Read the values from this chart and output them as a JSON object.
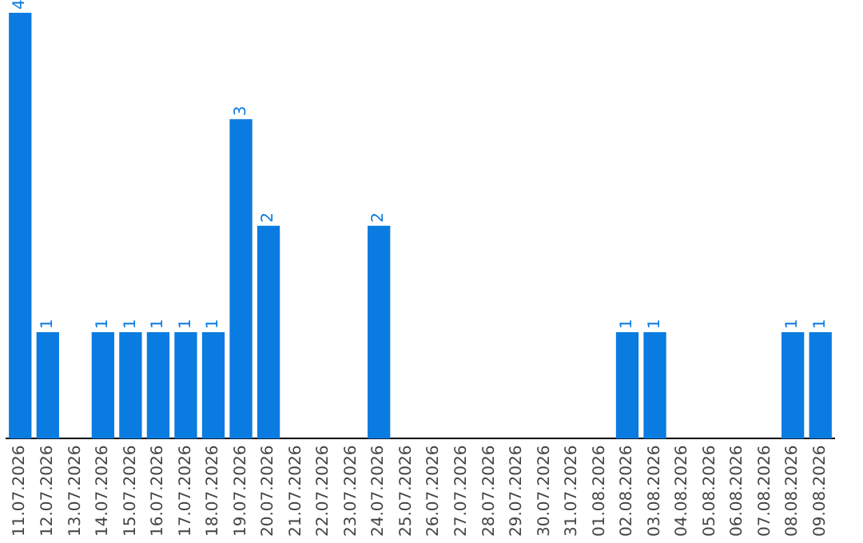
{
  "chart_data": {
    "type": "bar",
    "categories": [
      "11.07.2026",
      "12.07.2026",
      "13.07.2026",
      "14.07.2026",
      "15.07.2026",
      "16.07.2026",
      "17.07.2026",
      "18.07.2026",
      "19.07.2026",
      "20.07.2026",
      "21.07.2026",
      "22.07.2026",
      "23.07.2026",
      "24.07.2026",
      "25.07.2026",
      "26.07.2026",
      "27.07.2026",
      "28.07.2026",
      "29.07.2026",
      "30.07.2026",
      "31.07.2026",
      "01.08.2026",
      "02.08.2026",
      "03.08.2026",
      "04.08.2026",
      "05.08.2026",
      "06.08.2026",
      "07.08.2026",
      "08.08.2026",
      "09.08.2026"
    ],
    "values": [
      4,
      1,
      0,
      1,
      1,
      1,
      1,
      1,
      3,
      2,
      0,
      0,
      0,
      2,
      0,
      0,
      0,
      0,
      0,
      0,
      0,
      0,
      1,
      1,
      0,
      0,
      0,
      0,
      1,
      1
    ],
    "value_labels": [
      "4",
      "1",
      null,
      "1",
      "1",
      "1",
      "1",
      "1",
      "3",
      "2",
      null,
      null,
      null,
      "2",
      null,
      null,
      null,
      null,
      null,
      null,
      null,
      null,
      "1",
      "1",
      null,
      null,
      null,
      null,
      "1",
      "1"
    ],
    "color": "#0a7be0",
    "grid": false,
    "legend": false,
    "tick_labels": "x"
  }
}
